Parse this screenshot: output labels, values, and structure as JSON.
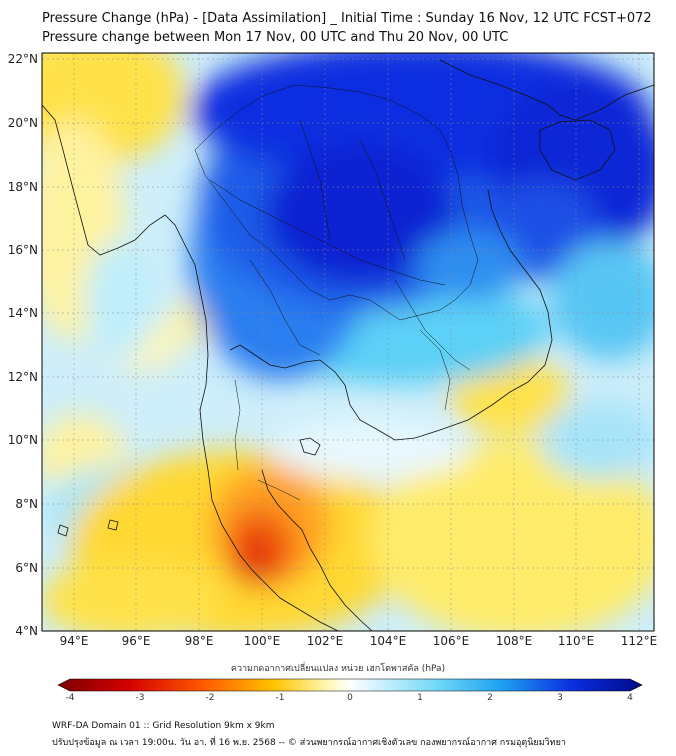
{
  "header": {
    "title_line1": "Pressure Change (hPa) - [Data Assimilation] _ Initial Time : Sunday 16 Nov, 12 UTC FCST+072",
    "title_line2": "Pressure change between Mon 17 Nov, 00 UTC and Thu 20 Nov, 00 UTC"
  },
  "map": {
    "lat_labels": [
      "22°N",
      "20°N",
      "18°N",
      "16°N",
      "14°N",
      "12°N",
      "10°N",
      "8°N",
      "6°N",
      "4°N"
    ],
    "lon_labels": [
      "94°E",
      "96°E",
      "98°E",
      "100°E",
      "102°E",
      "104°E",
      "106°E",
      "108°E",
      "110°E",
      "112°E"
    ],
    "lon_range": [
      93,
      112.5
    ],
    "lat_range": [
      4,
      22.2
    ]
  },
  "colorbar": {
    "title": "ความกดอากาศเปลี่ยนแปลง หน่วย เฮกโตพาสคัล (hPa)",
    "tick_labels": [
      "-4",
      "-3",
      "-2",
      "-1",
      "0",
      "1",
      "2",
      "3",
      "4"
    ],
    "range": [
      -4,
      4
    ]
  },
  "footer": {
    "line1": "WRF-DA Domain 01 :: Grid Resolution 9km x 9km",
    "line2": "ปรับปรุงข้อมูล ณ เวลา 19:00น. วัน อา. ที่ 16 พ.ย. 2568 -- © ส่วนพยากรณ์อากาศเชิงตัวเลข กองพยากรณ์อากาศ กรมอุตุนิยมวิทยา"
  },
  "colors": {
    "deep_blue": "#0a1fd8",
    "light_blue": "#38c8f5",
    "yellow": "#ffe84a",
    "red": "#e8280a"
  }
}
